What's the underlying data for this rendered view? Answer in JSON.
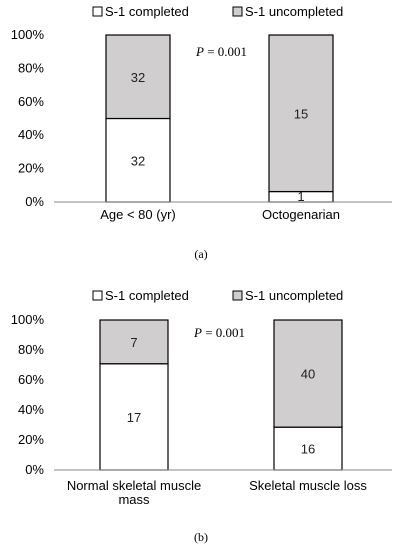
{
  "chart_data": [
    {
      "type": "bar",
      "stacked": true,
      "percent_stacked": true,
      "categories": [
        "Age < 80 (yr)",
        "Octogenarian"
      ],
      "series": [
        {
          "name": "S-1 completed",
          "values": [
            32,
            1
          ],
          "color": "#ffffff"
        },
        {
          "name": "S-1 uncompleted",
          "values": [
            32,
            15
          ],
          "color": "#d0cece"
        }
      ],
      "ylim": [
        0,
        100
      ],
      "yticks": [
        "0%",
        "20%",
        "40%",
        "60%",
        "80%",
        "100%"
      ],
      "annotation": {
        "p_label": "P",
        "p_value": " = 0.001"
      },
      "caption": "(a)",
      "legend_position": "top",
      "grid": false
    },
    {
      "type": "bar",
      "stacked": true,
      "percent_stacked": true,
      "categories": [
        "Normal skeletal muscle mass",
        "Skeletal muscle loss"
      ],
      "series": [
        {
          "name": "S-1 completed",
          "values": [
            17,
            16
          ],
          "color": "#ffffff"
        },
        {
          "name": "S-1 uncompleted",
          "values": [
            7,
            40
          ],
          "color": "#d0cece"
        }
      ],
      "ylim": [
        0,
        100
      ],
      "yticks": [
        "0%",
        "20%",
        "40%",
        "60%",
        "80%",
        "100%"
      ],
      "annotation": {
        "p_label": "P",
        "p_value": " = 0.001"
      },
      "caption": "(b)",
      "legend_position": "top",
      "grid": false
    }
  ]
}
